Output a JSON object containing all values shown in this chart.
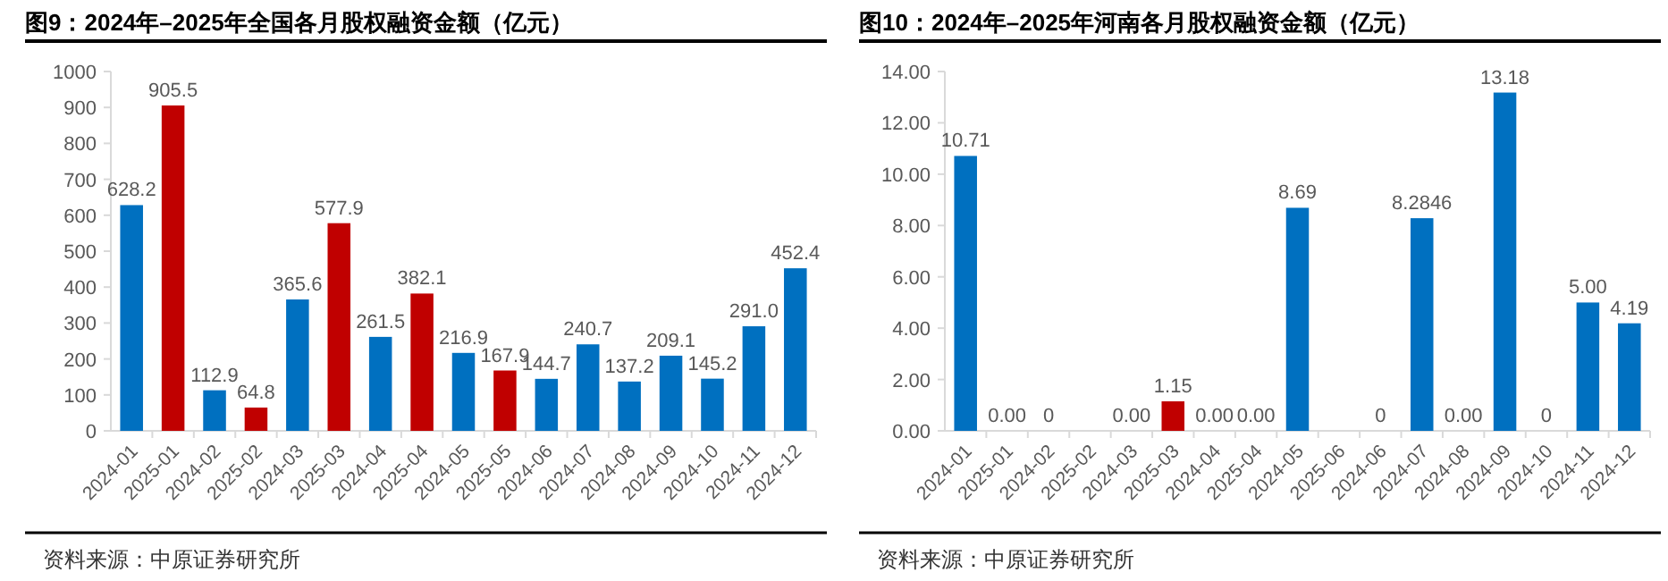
{
  "chart_data": [
    {
      "type": "bar",
      "title": "图9：2024年–2025年全国各月股权融资金额（亿元）",
      "categories": [
        "2024-01",
        "2025-01",
        "2024-02",
        "2025-02",
        "2024-03",
        "2025-03",
        "2024-04",
        "2025-04",
        "2024-05",
        "2025-05",
        "2024-06",
        "2024-07",
        "2024-08",
        "2024-09",
        "2024-10",
        "2024-11",
        "2024-12"
      ],
      "values": [
        628.2,
        905.5,
        112.9,
        64.8,
        365.6,
        577.9,
        261.5,
        382.1,
        216.9,
        167.9,
        144.7,
        240.7,
        137.2,
        209.1,
        145.2,
        291.0,
        452.4
      ],
      "value_labels": [
        "628.2",
        "905.5",
        "112.9",
        "64.8",
        "365.6",
        "577.9",
        "261.5",
        "382.1",
        "216.9",
        "167.9",
        "144.7",
        "240.7",
        "137.2",
        "209.1",
        "145.2",
        "291.0",
        "452.4"
      ],
      "colors": [
        "#0070c0",
        "#c00000",
        "#0070c0",
        "#c00000",
        "#0070c0",
        "#c00000",
        "#0070c0",
        "#c00000",
        "#0070c0",
        "#c00000",
        "#0070c0",
        "#0070c0",
        "#0070c0",
        "#0070c0",
        "#0070c0",
        "#0070c0",
        "#0070c0"
      ],
      "ylim": [
        0,
        1000
      ],
      "yticks": [
        0,
        100,
        200,
        300,
        400,
        500,
        600,
        700,
        800,
        900,
        1000
      ],
      "grid": false,
      "annotations": [
        "资料来源：中原证券研究所"
      ]
    },
    {
      "type": "bar",
      "title": "图10：2024年–2025年河南各月股权融资金额（亿元）",
      "categories": [
        "2024-01",
        "2025-01",
        "2024-02",
        "2025-02",
        "2024-03",
        "2025-03",
        "2024-04",
        "2025-04",
        "2024-05",
        "2025-06",
        "2024-06",
        "2024-07",
        "2024-08",
        "2024-09",
        "2024-10",
        "2024-11",
        "2024-12"
      ],
      "values": [
        10.71,
        0.0,
        0,
        null,
        0.0,
        1.15,
        0.0,
        0.0,
        8.69,
        null,
        0,
        8.2846,
        0.0,
        13.18,
        0,
        5.0,
        4.19
      ],
      "value_labels": [
        "10.71",
        "0.00",
        "0",
        null,
        "0.00",
        "1.15",
        "0.00",
        "0.00",
        "8.69",
        null,
        "0",
        "8.2846",
        "0.00",
        "13.18",
        "0",
        "5.00",
        "4.19"
      ],
      "colors": [
        "#0070c0",
        "#c00000",
        "#0070c0",
        null,
        "#0070c0",
        "#c00000",
        "#0070c0",
        "#c00000",
        "#0070c0",
        null,
        "#0070c0",
        "#0070c0",
        "#0070c0",
        "#0070c0",
        "#0070c0",
        "#0070c0",
        "#0070c0"
      ],
      "ylim": [
        0,
        14
      ],
      "yticks": [
        {
          "value": 0,
          "label": "0.00"
        },
        {
          "value": 2,
          "label": "2.00"
        },
        {
          "value": 4,
          "label": "4.00"
        },
        {
          "value": 6,
          "label": "6.00"
        },
        {
          "value": 8,
          "label": "8.00"
        },
        {
          "value": 10,
          "label": "10.00"
        },
        {
          "value": 12,
          "label": "12.00"
        },
        {
          "value": 14,
          "label": "14.00"
        }
      ],
      "grid": false,
      "annotations": [
        "资料来源：中原证券研究所"
      ]
    }
  ]
}
